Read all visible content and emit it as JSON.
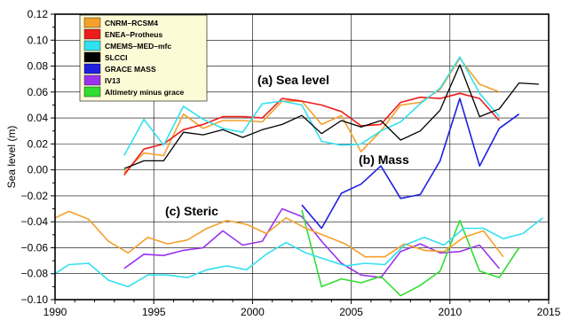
{
  "chart_data": {
    "type": "line",
    "title": "",
    "xlabel": "",
    "ylabel": "Sea level (m)",
    "xlim": [
      1990,
      2015
    ],
    "ylim": [
      -0.1,
      0.12
    ],
    "xticks": [
      1990,
      1995,
      2000,
      2005,
      2010,
      2015
    ],
    "yticks": [
      -0.1,
      -0.08,
      -0.06,
      -0.04,
      -0.02,
      0.0,
      0.02,
      0.04,
      0.06,
      0.08,
      0.1,
      0.12
    ],
    "xtick_labels": [
      "1990",
      "1995",
      "2000",
      "2005",
      "2010",
      "2015"
    ],
    "ytick_labels": [
      "−0.10",
      "−0.08",
      "−0.06",
      "−0.04",
      "−0.02",
      "0.00",
      "0.02",
      "0.04",
      "0.06",
      "0.08",
      "0.10",
      "0.12"
    ],
    "grid": true,
    "legend_position": "top-left",
    "annotations": [
      {
        "text": "(a)  Sea level",
        "x": 1998.3,
        "y": 0.072
      },
      {
        "text": "(b)  Mass",
        "x": 2005.0,
        "y": 0.005
      },
      {
        "text": "(c)  Steric",
        "x": 1994.3,
        "y": -0.034
      }
    ],
    "series": [
      {
        "name": "CNRM–RCSM4",
        "color": "#f5a02a",
        "x": [
          1993.5,
          1994.5,
          1995.5,
          1996.5,
          1997.5,
          1998.5,
          1999.5,
          2000.5,
          2001.5,
          2002.5,
          2003.5,
          2004.5,
          2005.5,
          2006.5,
          2007.5,
          2008.5,
          2009.5,
          2010.5,
          2011.5,
          2012.5
        ],
        "y": [
          -0.002,
          0.013,
          0.011,
          0.043,
          0.032,
          0.038,
          0.038,
          0.037,
          0.053,
          0.053,
          0.035,
          0.042,
          0.014,
          0.03,
          0.05,
          0.052,
          0.062,
          0.086,
          0.066,
          0.06
        ]
      },
      {
        "name": "ENEA–Protheus",
        "color": "#ee1c1c",
        "x": [
          1993.5,
          1994.5,
          1995.5,
          1996.5,
          1997.5,
          1998.5,
          1999.5,
          2000.5,
          2001.5,
          2002.5,
          2003.5,
          2004.5,
          2005.5,
          2006.5,
          2007.5,
          2008.5,
          2009.5,
          2010.5,
          2011.5,
          2012.5
        ],
        "y": [
          -0.004,
          0.016,
          0.02,
          0.031,
          0.035,
          0.041,
          0.041,
          0.04,
          0.055,
          0.053,
          0.05,
          0.045,
          0.034,
          0.035,
          0.052,
          0.056,
          0.055,
          0.059,
          0.055,
          0.038
        ]
      },
      {
        "name": "CMEMS–MED–mfc",
        "color": "#33e0f0",
        "x": [
          1993.5,
          1994.5,
          1995.5,
          1996.5,
          1997.5,
          1998.5,
          1999.5,
          2000.5,
          2001.5,
          2002.5,
          2003.5,
          2004.5,
          2005.5,
          2006.5,
          2007.5,
          2008.5,
          2009.5,
          2010.5,
          2011.5,
          2012.5
        ],
        "y": [
          0.011,
          0.039,
          0.019,
          0.049,
          0.039,
          0.032,
          0.029,
          0.051,
          0.053,
          0.05,
          0.022,
          0.019,
          0.02,
          0.03,
          0.037,
          0.051,
          0.063,
          0.087,
          0.059,
          0.041
        ]
      },
      {
        "name": "SLCCI",
        "color": "#000000",
        "x": [
          1993.5,
          1994.5,
          1995.5,
          1996.5,
          1997.5,
          1998.5,
          1999.5,
          2000.5,
          2001.5,
          2002.5,
          2003.5,
          2004.5,
          2005.5,
          2006.5,
          2007.5,
          2008.5,
          2009.5,
          2010.5,
          2011.5,
          2012.5,
          2013.5,
          2014.5
        ],
        "y": [
          0.001,
          0.007,
          0.007,
          0.029,
          0.027,
          0.031,
          0.025,
          0.031,
          0.035,
          0.042,
          0.028,
          0.038,
          0.033,
          0.038,
          0.023,
          0.03,
          0.046,
          0.081,
          0.041,
          0.047,
          0.067,
          0.066
        ]
      },
      {
        "name": "GRACE MASS",
        "color": "#1f1fe0",
        "x": [
          2002.5,
          2003.5,
          2004.5,
          2005.5,
          2006.5,
          2007.5,
          2008.5,
          2009.5,
          2010.5,
          2011.5,
          2012.5,
          2013.5
        ],
        "y": [
          -0.027,
          -0.045,
          -0.018,
          -0.011,
          0.003,
          -0.022,
          -0.019,
          0.007,
          0.055,
          0.003,
          0.032,
          0.043
        ]
      },
      {
        "name": "IV13",
        "color": "#9933ee",
        "x": [
          1993.5,
          1994.5,
          1995.5,
          1996.5,
          1997.5,
          1998.5,
          1999.5,
          2000.5,
          2001.5,
          2002.5,
          2003.5,
          2004.5,
          2005.5,
          2006.5,
          2007.5,
          2008.5,
          2009.5,
          2010.5,
          2011.5,
          2012.5
        ],
        "y": [
          -0.076,
          -0.065,
          -0.066,
          -0.062,
          -0.06,
          -0.047,
          -0.058,
          -0.055,
          -0.03,
          -0.036,
          -0.055,
          -0.072,
          -0.081,
          -0.083,
          -0.063,
          -0.057,
          -0.064,
          -0.063,
          -0.058,
          -0.076
        ]
      },
      {
        "name": "Altimetry minus grace",
        "color": "#33dd33",
        "x": [
          2002.5,
          2003.5,
          2004.5,
          2005.5,
          2006.5,
          2007.5,
          2008.5,
          2009.5,
          2010.5,
          2011.5,
          2012.5,
          2013.5
        ],
        "y": [
          -0.031,
          -0.09,
          -0.084,
          -0.087,
          -0.082,
          -0.097,
          -0.089,
          -0.078,
          -0.039,
          -0.078,
          -0.083,
          -0.06
        ]
      },
      {
        "name": "",
        "color": "#f5a02a",
        "x": [
          1990.0,
          1990.7,
          1991.7,
          1992.7,
          1993.7,
          1994.7,
          1995.7,
          1996.7,
          1997.7,
          1998.7,
          1999.7,
          2000.7,
          2001.7,
          2002.7,
          2003.7,
          2004.7,
          2005.7,
          2006.7,
          2007.7,
          2008.7,
          2009.7,
          2010.7,
          2011.7,
          2012.7
        ],
        "y": [
          -0.037,
          -0.032,
          -0.038,
          -0.055,
          -0.064,
          -0.052,
          -0.057,
          -0.054,
          -0.045,
          -0.039,
          -0.042,
          -0.049,
          -0.037,
          -0.045,
          -0.051,
          -0.057,
          -0.067,
          -0.067,
          -0.057,
          -0.062,
          -0.063,
          -0.052,
          -0.047,
          -0.067
        ]
      },
      {
        "name": "",
        "color": "#33e0f0",
        "x": [
          1990.0,
          1990.7,
          1991.7,
          1992.7,
          1993.7,
          1994.7,
          1995.7,
          1996.7,
          1997.7,
          1998.7,
          1999.7,
          2000.7,
          2001.7,
          2002.7,
          2003.7,
          2004.7,
          2005.7,
          2006.7,
          2007.7,
          2008.7,
          2009.7,
          2010.7,
          2011.7,
          2012.7,
          2013.7,
          2014.7
        ],
        "y": [
          -0.08,
          -0.073,
          -0.072,
          -0.085,
          -0.09,
          -0.081,
          -0.081,
          -0.083,
          -0.077,
          -0.074,
          -0.077,
          -0.065,
          -0.056,
          -0.064,
          -0.069,
          -0.074,
          -0.072,
          -0.073,
          -0.058,
          -0.052,
          -0.058,
          -0.045,
          -0.045,
          -0.053,
          -0.049,
          -0.037
        ]
      }
    ]
  }
}
